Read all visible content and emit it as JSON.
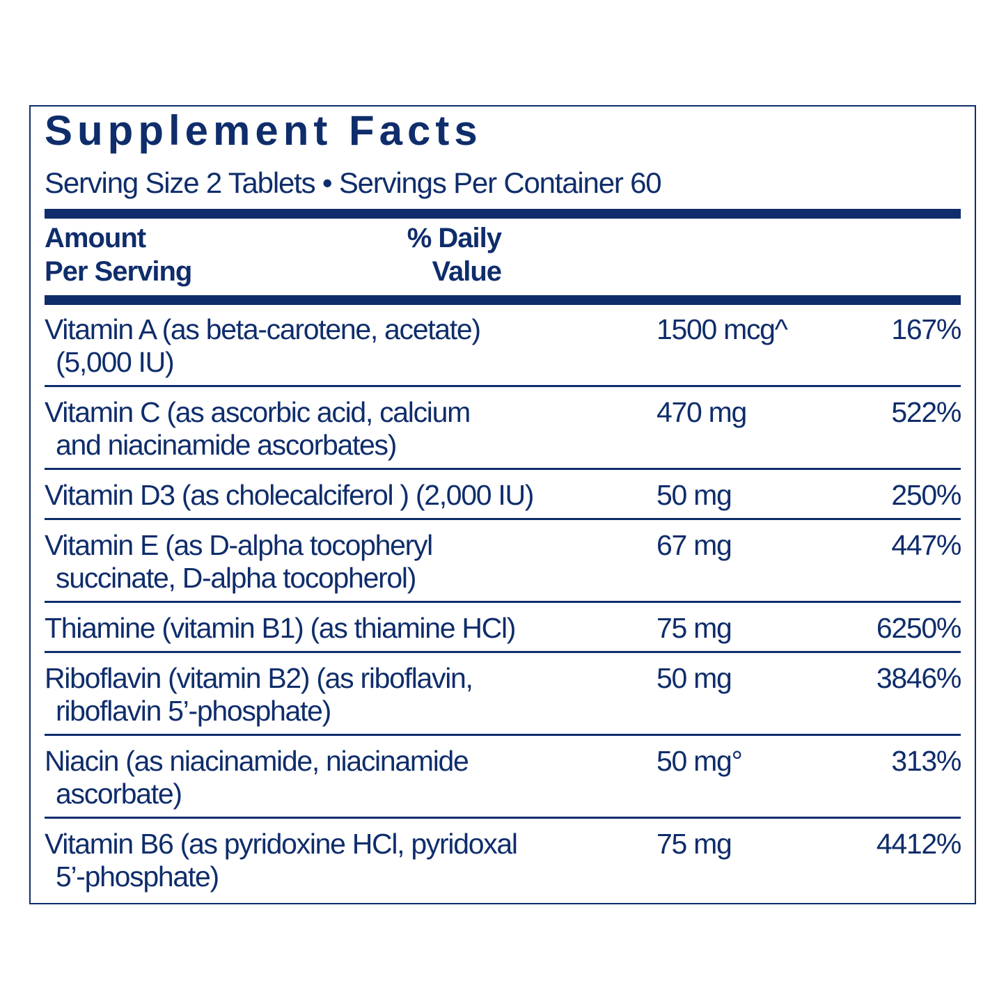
{
  "title": "Supplement Facts",
  "serving": "Serving Size 2 Tablets • Servings Per Container 60",
  "header": {
    "amount_line1": "Amount",
    "amount_line2": "Per Serving",
    "dv_line1": "% Daily",
    "dv_line2": "Value"
  },
  "rows": [
    {
      "line1": "Vitamin A (as beta-carotene, acetate)",
      "line2": "(5,000 IU)",
      "amount": "1500 mcg^",
      "dv": "167%"
    },
    {
      "line1": "Vitamin C (as ascorbic acid, calcium",
      "line2": "and niacinamide ascorbates)",
      "amount": "470 mg",
      "dv": "522%"
    },
    {
      "line1": "Vitamin D3 (as cholecalciferol ) (2,000 IU)",
      "line2": "",
      "amount": "50 mg",
      "dv": "250%"
    },
    {
      "line1": "Vitamin E (as D-alpha tocopheryl",
      "line2": "succinate, D-alpha tocopherol)",
      "amount": "67 mg",
      "dv": "447%"
    },
    {
      "line1": "Thiamine (vitamin B1) (as thiamine HCl)",
      "line2": "",
      "amount": "75 mg",
      "dv": "6250%"
    },
    {
      "line1": "Riboflavin (vitamin B2) (as riboflavin,",
      "line2": "riboflavin 5’-phosphate)",
      "amount": "50 mg",
      "dv": "3846%"
    },
    {
      "line1": "Niacin (as niacinamide, niacinamide",
      "line2": "ascorbate)",
      "amount": "50 mg°",
      "dv": "313%"
    },
    {
      "line1": "Vitamin B6 (as pyridoxine HCl, pyridoxal",
      "line2": "5’-phosphate)",
      "amount": "75 mg",
      "dv": "4412%"
    }
  ],
  "colors": {
    "ink": "#0f2d6b",
    "background": "#ffffff"
  }
}
